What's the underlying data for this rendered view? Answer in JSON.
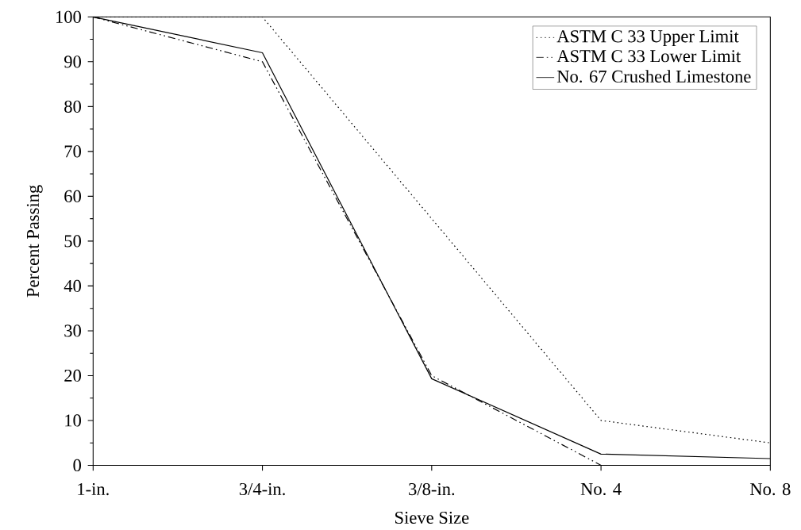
{
  "chart_data": {
    "type": "line",
    "xlabel": "Sieve Size",
    "ylabel": "Percent Passing",
    "categories": [
      "1-in.",
      "3/4-in.",
      "3/8-in.",
      "No. 4",
      "No. 8"
    ],
    "ylim": [
      0,
      100
    ],
    "yticks": [
      0,
      10,
      20,
      30,
      40,
      50,
      60,
      70,
      80,
      90,
      100
    ],
    "grid": false,
    "legend": "top right",
    "marker": "none",
    "series": [
      {
        "name": "ASTM C 33 Upper Limit",
        "color": "#000000",
        "line_style": "dotted",
        "values": [
          100,
          100,
          55,
          10,
          5
        ]
      },
      {
        "name": "ASTM C 33 Lower Limit",
        "color": "#000000",
        "line_style": "dashed",
        "values": [
          100,
          90,
          20,
          0,
          null
        ]
      },
      {
        "name": "No. 67 Crushed Limestone",
        "color": "#000000",
        "line_style": "solid",
        "values": [
          100,
          92,
          19.3,
          2.5,
          1.5
        ]
      }
    ]
  }
}
